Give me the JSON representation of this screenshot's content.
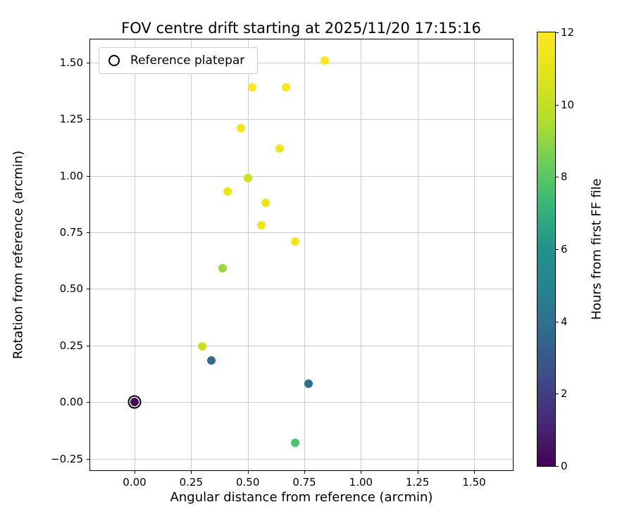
{
  "chart_data": {
    "type": "scatter",
    "title": "FOV centre drift starting at 2025/11/20 17:15:16",
    "xlabel": "Angular distance from reference (arcmin)",
    "ylabel": "Rotation from reference (arcmin)",
    "xlim": [
      -0.196,
      1.671
    ],
    "ylim": [
      -0.301,
      1.602
    ],
    "grid": true,
    "x_ticks": [
      0.0,
      0.25,
      0.5,
      0.75,
      1.0,
      1.25,
      1.5
    ],
    "x_tick_labels": [
      "0.00",
      "0.25",
      "0.50",
      "0.75",
      "1.00",
      "1.25",
      "1.50"
    ],
    "y_ticks": [
      -0.25,
      0.0,
      0.25,
      0.5,
      0.75,
      1.0,
      1.25,
      1.5
    ],
    "y_tick_labels": [
      "−0.25",
      "0.00",
      "0.25",
      "0.50",
      "0.75",
      "1.00",
      "1.25",
      "1.50"
    ],
    "legend": {
      "label": "Reference platepar",
      "position": "upper left",
      "marker": "open-circle"
    },
    "colorbar": {
      "label": "Hours from first FF file",
      "min": 0,
      "max": 12,
      "ticks": [
        0,
        2,
        4,
        6,
        8,
        10,
        12
      ],
      "colormap": "viridis"
    },
    "reference_point": {
      "x": 0.0,
      "y": 0.0
    },
    "points": [
      {
        "x": 0.84,
        "y": 1.51,
        "hours": 12.0
      },
      {
        "x": 0.52,
        "y": 1.39,
        "hours": 11.9
      },
      {
        "x": 0.67,
        "y": 1.39,
        "hours": 11.8
      },
      {
        "x": 0.47,
        "y": 1.21,
        "hours": 11.6
      },
      {
        "x": 0.64,
        "y": 1.12,
        "hours": 11.5
      },
      {
        "x": 0.5,
        "y": 0.99,
        "hours": 10.3
      },
      {
        "x": 0.41,
        "y": 0.93,
        "hours": 11.2
      },
      {
        "x": 0.58,
        "y": 0.88,
        "hours": 11.3
      },
      {
        "x": 0.56,
        "y": 0.78,
        "hours": 11.4
      },
      {
        "x": 0.71,
        "y": 0.71,
        "hours": 11.5
      },
      {
        "x": 0.39,
        "y": 0.59,
        "hours": 9.2
      },
      {
        "x": 0.3,
        "y": 0.245,
        "hours": 10.2
      },
      {
        "x": 0.34,
        "y": 0.185,
        "hours": 3.8
      },
      {
        "x": 0.77,
        "y": 0.08,
        "hours": 4.0
      },
      {
        "x": 0.0,
        "y": 0.0,
        "hours": 0.2
      },
      {
        "x": 0.71,
        "y": -0.18,
        "hours": 7.8
      }
    ]
  },
  "colors": {
    "background": "#ffffff",
    "grid": "#cccccc",
    "spine": "#000000",
    "legend_edge": "#cccccc",
    "viridis_stops": [
      "#440154",
      "#482878",
      "#3e4a89",
      "#31688e",
      "#26828e",
      "#21918c",
      "#35b779",
      "#6dcd59",
      "#b4de2c",
      "#dfe318",
      "#fde725"
    ]
  }
}
